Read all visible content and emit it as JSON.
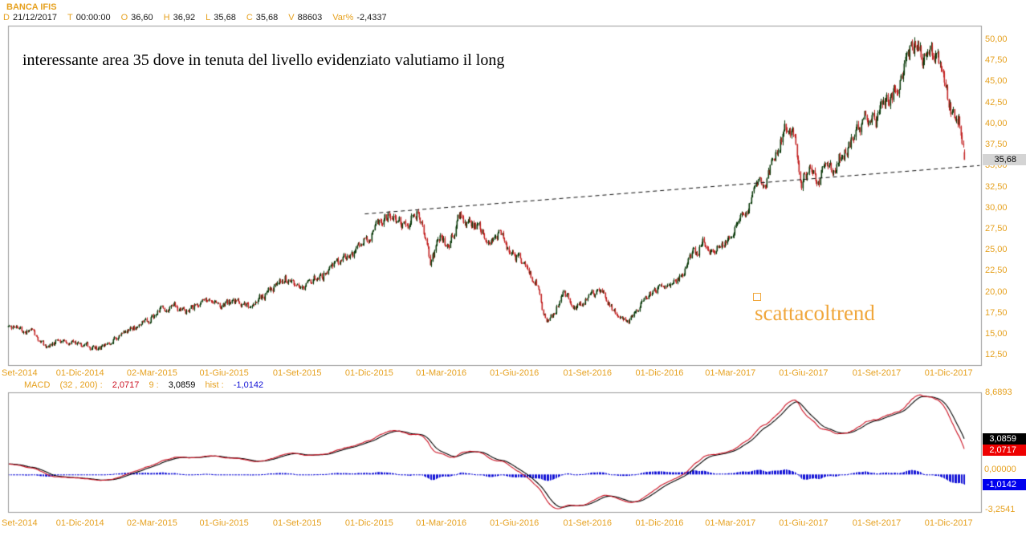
{
  "header": {
    "symbol": "BANCA IFIS",
    "quote_fields": [
      {
        "label": "D",
        "value": "21/12/2017"
      },
      {
        "label": "T",
        "value": "00:00:00"
      },
      {
        "label": "O",
        "value": "36,60"
      },
      {
        "label": "H",
        "value": "36,92"
      },
      {
        "label": "L",
        "value": "35,68"
      },
      {
        "label": "C",
        "value": "35,68"
      },
      {
        "label": "V",
        "value": "88603"
      },
      {
        "label": "Var%",
        "value": "-2,4337"
      }
    ]
  },
  "annotation": "interessante area 35 dove in tenuta del livello evidenziato valutiamo il long",
  "watermark": {
    "text": "scattacoltrend"
  },
  "macd_header": {
    "title": "MACD",
    "params": "(32 , 200) :",
    "macd_value": "2,0717",
    "signal_prefix": "9 :",
    "signal_value": "3,0859",
    "hist_prefix": "hist :",
    "hist_value": "-1,0142"
  },
  "colors": {
    "accent_orange": "#E6A11F",
    "watermark_orange": "#F0A73C",
    "candle_up": "#0B3B0B",
    "candle_down": "#C32424",
    "macd_line": "#CC1122",
    "signal_line": "#000000",
    "hist_bar": "#1212D6",
    "border_gray": "#999999",
    "trendline_black": "#111111",
    "tag_gray_bg": "#D4D4D4",
    "tag_black_bg": "#000000",
    "tag_red_bg": "#EE0000",
    "tag_blue_bg": "#0000EE",
    "value_black": "#1A1A1A"
  },
  "chart_data": [
    {
      "type": "candlestick",
      "symbol": "BANCA IFIS",
      "period": "daily",
      "date_start": "2014-09-01",
      "date_end": "2017-12-21",
      "axis_date_end": "2018-01-12",
      "ylim": [
        11.3,
        51.6
      ],
      "y_ticks": [
        {
          "v": 50.0,
          "t": "50,00"
        },
        {
          "v": 47.5,
          "t": "47,50"
        },
        {
          "v": 45.0,
          "t": "45,00"
        },
        {
          "v": 42.5,
          "t": "42,50"
        },
        {
          "v": 40.0,
          "t": "40,00"
        },
        {
          "v": 37.5,
          "t": "37,50"
        },
        {
          "v": 35.0,
          "t": "35,00"
        },
        {
          "v": 32.5,
          "t": "32,50"
        },
        {
          "v": 30.0,
          "t": "30,00"
        },
        {
          "v": 27.5,
          "t": "27,50"
        },
        {
          "v": 25.0,
          "t": "25,00"
        },
        {
          "v": 22.5,
          "t": "22,50"
        },
        {
          "v": 20.0,
          "t": "20,00"
        },
        {
          "v": 17.5,
          "t": "17,50"
        },
        {
          "v": 15.0,
          "t": "15,00"
        },
        {
          "v": 12.5,
          "t": "12,50"
        }
      ],
      "x_ticks": [
        {
          "date": "2014-09-01",
          "label": "Set-2014"
        },
        {
          "date": "2014-12-01",
          "label": "01-Dic-2014"
        },
        {
          "date": "2015-03-02",
          "label": "02-Mar-2015"
        },
        {
          "date": "2015-06-01",
          "label": "01-Giu-2015"
        },
        {
          "date": "2015-09-01",
          "label": "01-Set-2015"
        },
        {
          "date": "2015-12-01",
          "label": "01-Dic-2015"
        },
        {
          "date": "2016-03-01",
          "label": "01-Mar-2016"
        },
        {
          "date": "2016-06-01",
          "label": "01-Giu-2016"
        },
        {
          "date": "2016-09-01",
          "label": "01-Set-2016"
        },
        {
          "date": "2016-12-01",
          "label": "01-Dic-2016"
        },
        {
          "date": "2017-03-01",
          "label": "01-Mar-2017"
        },
        {
          "date": "2017-06-01",
          "label": "01-Giu-2017"
        },
        {
          "date": "2017-09-01",
          "label": "01-Set-2017"
        },
        {
          "date": "2017-12-01",
          "label": "01-Dic-2017"
        }
      ],
      "close_anchors": [
        [
          "2014-09-01",
          15.8
        ],
        [
          "2014-10-01",
          15.1
        ],
        [
          "2014-10-20",
          13.5
        ],
        [
          "2014-11-07",
          14.4
        ],
        [
          "2014-12-01",
          13.8
        ],
        [
          "2014-12-23",
          13.1
        ],
        [
          "2015-01-20",
          14.7
        ],
        [
          "2015-03-02",
          16.9
        ],
        [
          "2015-03-25",
          18.4
        ],
        [
          "2015-04-14",
          17.6
        ],
        [
          "2015-05-05",
          18.9
        ],
        [
          "2015-05-21",
          18.1
        ],
        [
          "2015-06-11",
          19.0
        ],
        [
          "2015-07-03",
          18.0
        ],
        [
          "2015-07-31",
          20.6
        ],
        [
          "2015-08-17",
          21.9
        ],
        [
          "2015-09-02",
          20.4
        ],
        [
          "2015-09-21",
          21.3
        ],
        [
          "2015-10-21",
          23.2
        ],
        [
          "2015-11-20",
          25.3
        ],
        [
          "2015-12-10",
          27.6
        ],
        [
          "2015-12-29",
          29.7
        ],
        [
          "2016-01-15",
          27.6
        ],
        [
          "2016-02-01",
          29.9
        ],
        [
          "2016-02-09",
          27.0
        ],
        [
          "2016-02-16",
          23.3
        ],
        [
          "2016-02-29",
          26.2
        ],
        [
          "2016-03-09",
          25.4
        ],
        [
          "2016-03-25",
          29.2
        ],
        [
          "2016-04-11",
          28.0
        ],
        [
          "2016-04-28",
          26.4
        ],
        [
          "2016-05-17",
          26.9
        ],
        [
          "2016-06-02",
          24.0
        ],
        [
          "2016-06-15",
          23.4
        ],
        [
          "2016-06-29",
          21.0
        ],
        [
          "2016-07-07",
          17.4
        ],
        [
          "2016-07-14",
          16.2
        ],
        [
          "2016-07-26",
          18.4
        ],
        [
          "2016-08-03",
          19.8
        ],
        [
          "2016-08-18",
          18.2
        ],
        [
          "2016-09-02",
          19.6
        ],
        [
          "2016-09-19",
          19.9
        ],
        [
          "2016-10-03",
          18.3
        ],
        [
          "2016-10-14",
          16.8
        ],
        [
          "2016-10-24",
          16.3
        ],
        [
          "2016-11-09",
          18.9
        ],
        [
          "2016-11-24",
          19.8
        ],
        [
          "2016-12-08",
          21.3
        ],
        [
          "2016-12-19",
          20.6
        ],
        [
          "2017-01-02",
          22.4
        ],
        [
          "2017-01-13",
          24.6
        ],
        [
          "2017-01-25",
          25.8
        ],
        [
          "2017-02-06",
          24.7
        ],
        [
          "2017-02-20",
          25.4
        ],
        [
          "2017-03-07",
          27.3
        ],
        [
          "2017-03-22",
          30.2
        ],
        [
          "2017-04-05",
          32.6
        ],
        [
          "2017-04-19",
          34.2
        ],
        [
          "2017-05-03",
          37.9
        ],
        [
          "2017-05-12",
          39.8
        ],
        [
          "2017-05-22",
          37.2
        ],
        [
          "2017-05-30",
          33.3
        ],
        [
          "2017-06-12",
          34.3
        ],
        [
          "2017-06-22",
          33.6
        ],
        [
          "2017-07-06",
          34.8
        ],
        [
          "2017-07-19",
          36.2
        ],
        [
          "2017-07-31",
          37.6
        ],
        [
          "2017-08-07",
          38.3
        ],
        [
          "2017-08-23",
          41.3
        ],
        [
          "2017-09-01",
          40.4
        ],
        [
          "2017-09-12",
          42.3
        ],
        [
          "2017-09-22",
          43.6
        ],
        [
          "2017-10-05",
          46.3
        ],
        [
          "2017-10-17",
          48.6
        ],
        [
          "2017-10-24",
          49.7
        ],
        [
          "2017-10-31",
          47.3
        ],
        [
          "2017-11-08",
          48.3
        ],
        [
          "2017-11-16",
          47.6
        ],
        [
          "2017-11-24",
          45.2
        ],
        [
          "2017-12-04",
          42.8
        ],
        [
          "2017-12-11",
          39.8
        ],
        [
          "2017-12-14",
          40.4
        ],
        [
          "2017-12-19",
          37.5
        ],
        [
          "2017-12-21",
          35.68
        ]
      ],
      "last_candle": {
        "open": 36.6,
        "high": 36.92,
        "low": 35.68,
        "close": 35.68
      },
      "last_price_label": "35,68",
      "trendline": {
        "style": "dashed",
        "from": {
          "date": "2015-11-25",
          "price": 29.3
        },
        "to": {
          "date": "2018-01-10",
          "price": 35.05
        }
      },
      "noise": {
        "seed": 20171221,
        "ar": 0.58,
        "amp": 0.046,
        "wick": 0.011
      }
    },
    {
      "type": "macd",
      "fast": 32,
      "slow": 200,
      "signal": 9,
      "last_macd": 2.0717,
      "last_signal": 3.0859,
      "last_hist": -1.0142,
      "axis_max_label": "8,6893",
      "axis_min_label": "-3,2541",
      "zero_label": "0,00000",
      "initial_macd": 1.3
    }
  ]
}
